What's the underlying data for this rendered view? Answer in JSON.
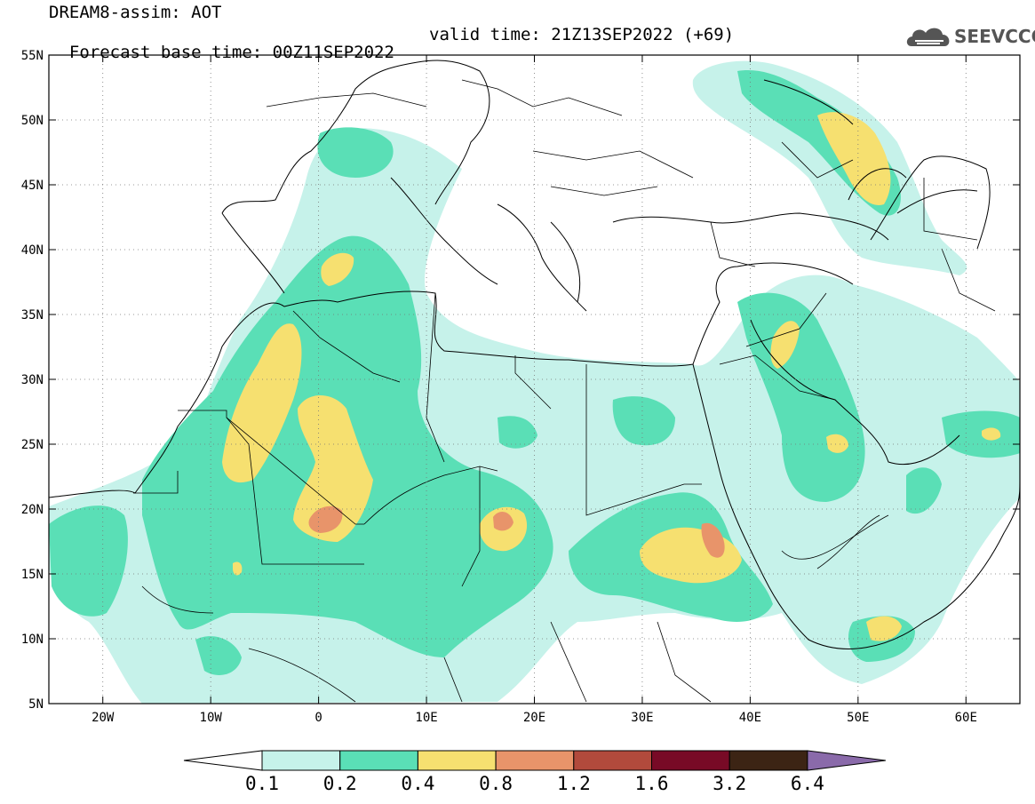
{
  "title": {
    "line1": "DREAM8-assim: AOT",
    "base_time": "Forecast base time: 00Z11SEP2022",
    "valid_time": "valid time: 21Z13SEP2022 (+69)"
  },
  "logo": {
    "text": "SEEVCCC",
    "icon": "cloud-icon"
  },
  "map": {
    "lon_range": [
      -25,
      65
    ],
    "lat_range": [
      5,
      55
    ],
    "x_ticks": [
      {
        "value": -20,
        "label": "20W"
      },
      {
        "value": -10,
        "label": "10W"
      },
      {
        "value": 0,
        "label": "0"
      },
      {
        "value": 10,
        "label": "10E"
      },
      {
        "value": 20,
        "label": "20E"
      },
      {
        "value": 30,
        "label": "30E"
      },
      {
        "value": 40,
        "label": "40E"
      },
      {
        "value": 50,
        "label": "50E"
      },
      {
        "value": 60,
        "label": "60E"
      }
    ],
    "y_ticks": [
      {
        "value": 55,
        "label": "55N"
      },
      {
        "value": 50,
        "label": "50N"
      },
      {
        "value": 45,
        "label": "45N"
      },
      {
        "value": 40,
        "label": "40N"
      },
      {
        "value": 35,
        "label": "35N"
      },
      {
        "value": 30,
        "label": "30N"
      },
      {
        "value": 25,
        "label": "25N"
      },
      {
        "value": 20,
        "label": "20N"
      },
      {
        "value": 15,
        "label": "15N"
      },
      {
        "value": 10,
        "label": "10N"
      },
      {
        "value": 5,
        "label": "5N"
      }
    ],
    "grid": true
  },
  "colorbar": {
    "colors": [
      "#ffffff",
      "#c6f2ea",
      "#5adfb6",
      "#f6e070",
      "#e8946a",
      "#b24a3c",
      "#780a26",
      "#3c2414",
      "#8a6aaa"
    ],
    "labels": [
      "0.1",
      "0.2",
      "0.4",
      "0.8",
      "1.2",
      "1.6",
      "3.2",
      "6.4"
    ]
  }
}
